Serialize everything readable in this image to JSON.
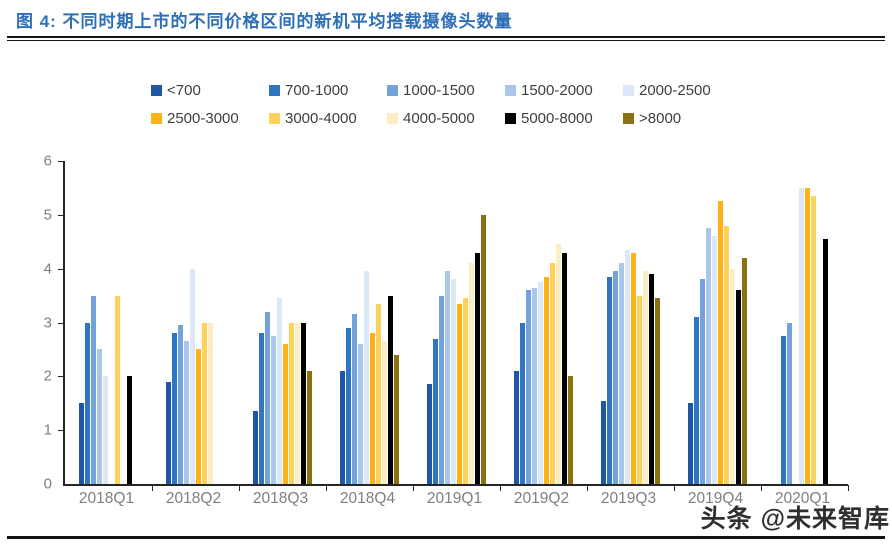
{
  "header": {
    "title": "图 4:  不同时期上市的不同价格区间的新机平均搭载摄像头数量"
  },
  "watermark": {
    "text": "头条 @未来智库"
  },
  "chart_data": {
    "type": "bar",
    "title": "不同时期上市的不同价格区间的新机平均搭载摄像头数量",
    "xlabel": "",
    "ylabel": "",
    "ylim": [
      0,
      6
    ],
    "yticks": [
      0,
      1,
      2,
      3,
      4,
      5,
      6
    ],
    "grid": false,
    "legend_position": "top",
    "categories": [
      "2018Q1",
      "2018Q2",
      "2018Q3",
      "2018Q4",
      "2019Q1",
      "2019Q2",
      "2019Q3",
      "2019Q4",
      "2020Q1"
    ],
    "series": [
      {
        "name": "<700",
        "color": "#1f56a5",
        "values": [
          1.5,
          1.9,
          1.35,
          2.1,
          1.85,
          2.1,
          1.55,
          1.5,
          null
        ]
      },
      {
        "name": "700-1000",
        "color": "#2e75c3",
        "values": [
          3.0,
          2.8,
          2.8,
          2.9,
          2.7,
          3.0,
          3.85,
          3.1,
          2.75
        ]
      },
      {
        "name": "1000-1500",
        "color": "#74a3db",
        "values": [
          3.5,
          2.95,
          3.2,
          3.15,
          3.5,
          3.6,
          3.95,
          3.8,
          3.0
        ]
      },
      {
        "name": "1500-2000",
        "color": "#a9c7e9",
        "values": [
          2.5,
          2.65,
          2.75,
          2.6,
          3.95,
          3.65,
          4.1,
          4.75,
          null
        ]
      },
      {
        "name": "2000-2500",
        "color": "#dce8f6",
        "values": [
          2.0,
          4.0,
          3.45,
          3.95,
          3.8,
          3.75,
          4.35,
          4.6,
          5.5
        ]
      },
      {
        "name": "2500-3000",
        "color": "#feb217",
        "values": [
          null,
          2.5,
          2.6,
          2.8,
          3.35,
          3.85,
          4.3,
          5.25,
          5.5
        ]
      },
      {
        "name": "3000-4000",
        "color": "#ffd159",
        "values": [
          3.5,
          3.0,
          3.0,
          3.35,
          3.45,
          4.1,
          3.5,
          4.8,
          5.35
        ]
      },
      {
        "name": "4000-5000",
        "color": "#fbeec4",
        "values": [
          null,
          3.0,
          3.0,
          2.65,
          4.1,
          4.45,
          3.95,
          4.0,
          null
        ]
      },
      {
        "name": "5000-8000",
        "color": "#000000",
        "values": [
          2.0,
          null,
          3.0,
          3.5,
          4.3,
          4.3,
          3.9,
          3.6,
          4.55
        ]
      },
      {
        "name": ">8000",
        "color": "#8a7211",
        "values": [
          null,
          null,
          2.1,
          2.4,
          5.0,
          2.0,
          3.45,
          4.2,
          null
        ]
      }
    ]
  }
}
